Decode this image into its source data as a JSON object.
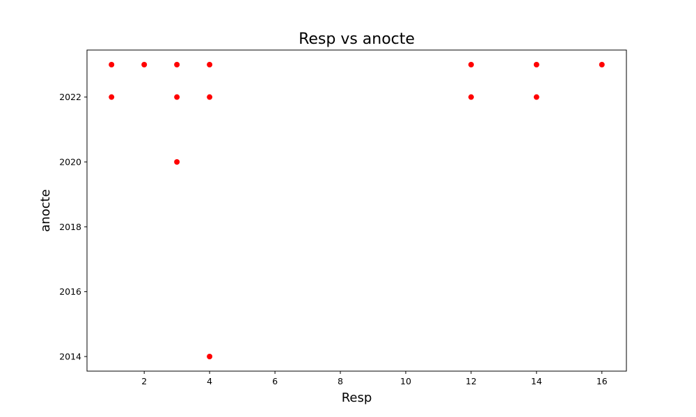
{
  "chart_data": {
    "type": "scatter",
    "title": "Resp vs anocte",
    "xlabel": "Resp",
    "ylabel": "anocte",
    "xlim": [
      0.25,
      16.75
    ],
    "ylim": [
      2013.55,
      2023.45
    ],
    "xticks": [
      2,
      4,
      6,
      8,
      10,
      12,
      14,
      16
    ],
    "yticks": [
      2014,
      2016,
      2018,
      2020,
      2022
    ],
    "grid": false,
    "marker_color": "#ff0000",
    "points": [
      {
        "x": 1,
        "y": 2023
      },
      {
        "x": 1,
        "y": 2022
      },
      {
        "x": 2,
        "y": 2023
      },
      {
        "x": 3,
        "y": 2023
      },
      {
        "x": 3,
        "y": 2022
      },
      {
        "x": 3,
        "y": 2020
      },
      {
        "x": 4,
        "y": 2023
      },
      {
        "x": 4,
        "y": 2022
      },
      {
        "x": 4,
        "y": 2014
      },
      {
        "x": 12,
        "y": 2023
      },
      {
        "x": 12,
        "y": 2022
      },
      {
        "x": 14,
        "y": 2023
      },
      {
        "x": 14,
        "y": 2022
      },
      {
        "x": 16,
        "y": 2023
      }
    ]
  }
}
